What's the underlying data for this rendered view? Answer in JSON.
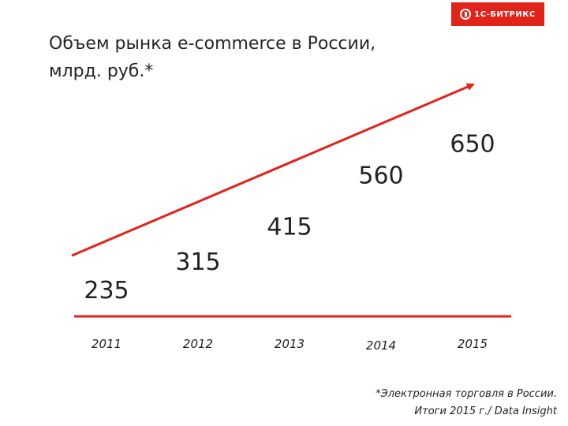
{
  "logo": {
    "text": "1С-БИТРИКС"
  },
  "title": {
    "line1": "Объем рынка e-commerce в России,",
    "line2": "млрд. руб.*"
  },
  "footnote": {
    "line1": "*Электронная торговля в России.",
    "line2": "Итоги 2015 г./ Data Insight"
  },
  "colors": {
    "accent": "#e2231a",
    "text": "#222222"
  },
  "chart_data": {
    "type": "line",
    "title": "Объем рынка e-commerce в России, млрд. руб.*",
    "categories": [
      "2011",
      "2012",
      "2013",
      "2014",
      "2015"
    ],
    "values": [
      235,
      315,
      415,
      560,
      650
    ],
    "value_labels": [
      "235",
      "315",
      "415",
      "560",
      "650"
    ],
    "xlabel": "",
    "ylabel": "",
    "grid": false,
    "legend": "none",
    "trend_arrow": {
      "from": "2011",
      "to": "2015",
      "color": "#e2231a"
    }
  }
}
